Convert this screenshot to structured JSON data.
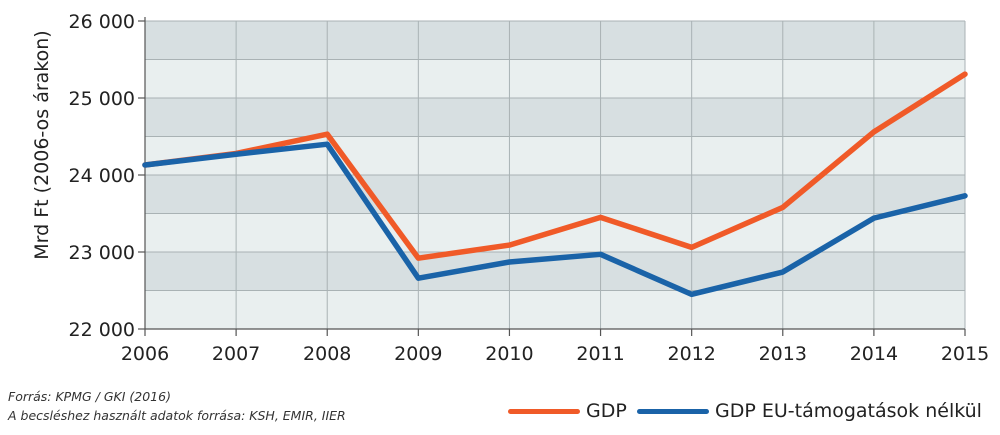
{
  "chart_data": {
    "type": "line",
    "x": [
      2006,
      2007,
      2008,
      2009,
      2010,
      2011,
      2012,
      2013,
      2014,
      2015
    ],
    "x_tick_labels": [
      "2006",
      "2007",
      "2008",
      "2009",
      "2010",
      "2011",
      "2012",
      "2013",
      "2014",
      "2015"
    ],
    "series": [
      {
        "name": "GDP",
        "color": "#f05a28",
        "values": [
          24130,
          24280,
          24530,
          22920,
          23090,
          23450,
          23060,
          23580,
          24560,
          25310
        ]
      },
      {
        "name": "GDP EU-támogatások nélkül",
        "color": "#1a63a8",
        "values": [
          24130,
          24270,
          24400,
          22660,
          22870,
          22970,
          22450,
          22740,
          23440,
          23730
        ]
      }
    ],
    "ylabel": "Mrd Ft (2006-os árakon)",
    "xlabel": "",
    "ylim": [
      22000,
      26000
    ],
    "y_ticks": [
      22000,
      23000,
      24000,
      25000,
      26000
    ],
    "y_tick_labels": [
      "22 000",
      "23 000",
      "24 000",
      "25 000",
      "26 000"
    ],
    "grid": true,
    "band_colors": [
      "#d7dfe1",
      "#e9efef"
    ],
    "legend_position": "bottom-right"
  },
  "source": {
    "line1": "Forrás: KPMG / GKI (2016)",
    "line2": "A becsléshez használt adatok forrása: KSH, EMIR, IIER"
  }
}
